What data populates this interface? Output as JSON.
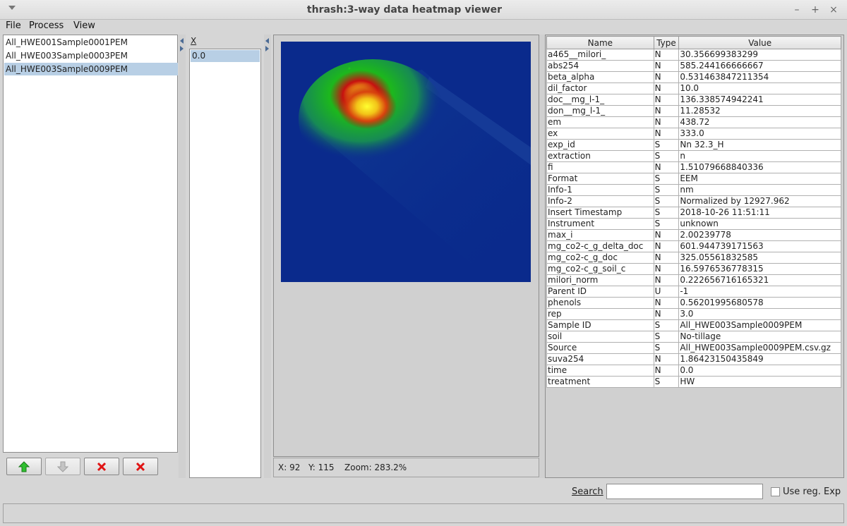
{
  "window": {
    "title": "thrash:3-way data heatmap viewer",
    "minimize": "–",
    "maximize": "+",
    "close": "×"
  },
  "menu": [
    "File",
    "Process",
    "View"
  ],
  "samples": {
    "items": [
      "All_HWE001Sample0001PEM",
      "All_HWE003Sample0003PEM",
      "All_HWE003Sample0009PEM"
    ],
    "selected_index": 2
  },
  "toolbar": {
    "move_up_icon": "green-up-arrow-icon",
    "move_down_icon": "grey-down-arrow-icon",
    "remove_icon": "red-x-icon",
    "remove_all_icon": "red-x-icon"
  },
  "x_panel": {
    "header": "X",
    "values": [
      "0.0"
    ]
  },
  "heatmap": {
    "colormap": [
      "#0a2a8c",
      "#1a8a3a",
      "#21c321",
      "#c81010",
      "#f0f020"
    ]
  },
  "status": {
    "x": "X: 92",
    "y": "Y: 115",
    "zoom": "Zoom: 283.2%"
  },
  "properties": {
    "headers": [
      "Name",
      "Type",
      "Value"
    ],
    "rows": [
      [
        "a465__milori_",
        "N",
        "30.356699383299"
      ],
      [
        "abs254",
        "N",
        "585.244166666667"
      ],
      [
        "beta_alpha",
        "N",
        "0.531463847211354"
      ],
      [
        "dil_factor",
        "N",
        "10.0"
      ],
      [
        "doc__mg_l-1_",
        "N",
        "136.338574942241"
      ],
      [
        "don__mg_l-1_",
        "N",
        "11.28532"
      ],
      [
        "em",
        "N",
        "438.72"
      ],
      [
        "ex",
        "N",
        "333.0"
      ],
      [
        "exp_id",
        "S",
        "Nn 32.3_H"
      ],
      [
        "extraction",
        "S",
        "n"
      ],
      [
        "fi",
        "N",
        "1.51079668840336"
      ],
      [
        "Format",
        "S",
        "EEM"
      ],
      [
        "Info-1",
        "S",
        "nm"
      ],
      [
        "Info-2",
        "S",
        "Normalized by 12927.962"
      ],
      [
        "Insert Timestamp",
        "S",
        "2018-10-26 11:51:11"
      ],
      [
        "Instrument",
        "S",
        "unknown"
      ],
      [
        "max_i",
        "N",
        "2.00239778"
      ],
      [
        "mg_co2-c_g_delta_doc",
        "N",
        "601.944739171563"
      ],
      [
        "mg_co2-c_g_doc",
        "N",
        "325.05561832585"
      ],
      [
        "mg_co2-c_g_soil_c",
        "N",
        "16.5976536778315"
      ],
      [
        "milori_norm",
        "N",
        "0.222656716165321"
      ],
      [
        "Parent ID",
        "U",
        "-1"
      ],
      [
        "phenols",
        "N",
        "0.56201995680578"
      ],
      [
        "rep",
        "N",
        "3.0"
      ],
      [
        "Sample ID",
        "S",
        "All_HWE003Sample0009PEM"
      ],
      [
        "soil",
        "S",
        "No-tillage"
      ],
      [
        "Source",
        "S",
        "All_HWE003Sample0009PEM.csv.gz"
      ],
      [
        "suva254",
        "N",
        "1.86423150435849"
      ],
      [
        "time",
        "N",
        "0.0"
      ],
      [
        "treatment",
        "S",
        "HW"
      ]
    ]
  },
  "search": {
    "label": "Search",
    "value": "",
    "regexp_label": "Use reg. Exp",
    "regexp_checked": false
  }
}
